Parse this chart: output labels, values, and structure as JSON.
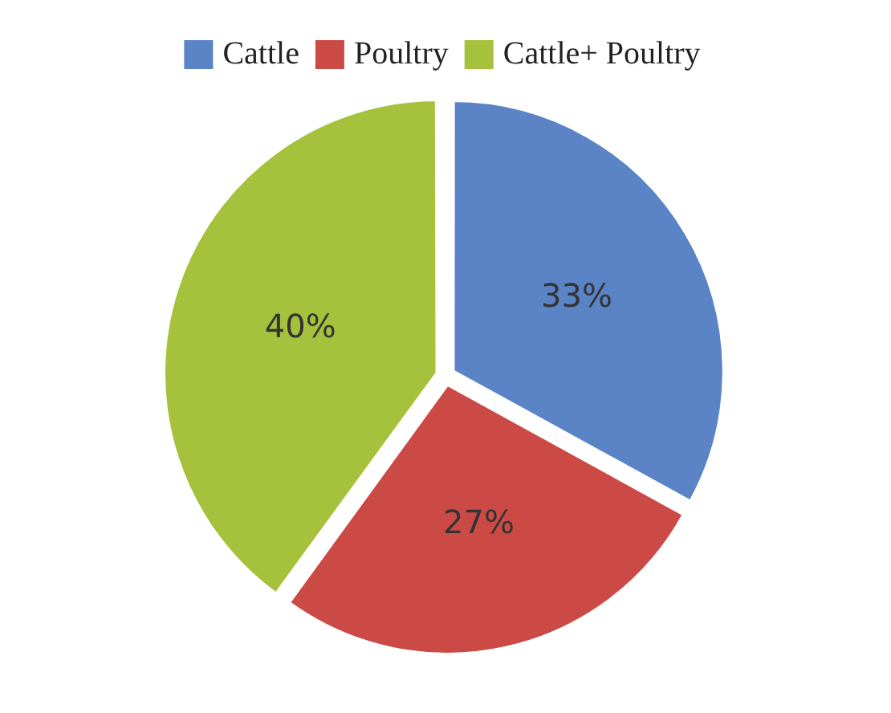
{
  "chart_data": {
    "type": "pie",
    "categories": [
      "Cattle",
      "Poultry",
      "Cattle+ Poultry"
    ],
    "values": [
      33,
      27,
      40
    ],
    "colors": [
      "#5a84c6",
      "#cc4a46",
      "#a6c13c"
    ],
    "value_labels": [
      "33%",
      "27%",
      "40%"
    ],
    "legend": "top"
  }
}
